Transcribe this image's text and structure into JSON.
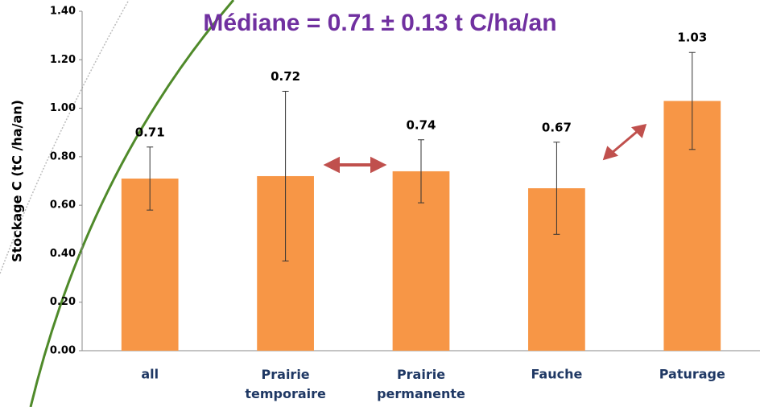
{
  "chart_data": {
    "type": "bar",
    "title": "Médiane = 0.71 ± 0.13 t C/ha/an",
    "y_label": "Stockage C (tC /ha/an)",
    "categories": [
      "all",
      "Prairie temporaire",
      "Prairie permanente",
      "Fauche",
      "Paturage"
    ],
    "values": [
      0.71,
      0.72,
      0.74,
      0.67,
      1.03
    ],
    "errors": [
      0.13,
      0.35,
      0.13,
      0.19,
      0.2
    ],
    "color": "#f79646",
    "ylim": [
      0,
      1.4
    ],
    "yticks": [
      {
        "value": 0,
        "label": "0.00"
      },
      {
        "value": 0.2,
        "label": "0.20"
      },
      {
        "value": 0.4,
        "label": "0.40"
      },
      {
        "value": 0.6,
        "label": "0.60"
      },
      {
        "value": 0.8,
        "label": "0.80"
      },
      {
        "value": 1.0,
        "label": "1.00"
      },
      {
        "value": 1.2,
        "label": "1.20"
      },
      {
        "value": 1.4,
        "label": "1.40"
      }
    ],
    "grid": false
  }
}
